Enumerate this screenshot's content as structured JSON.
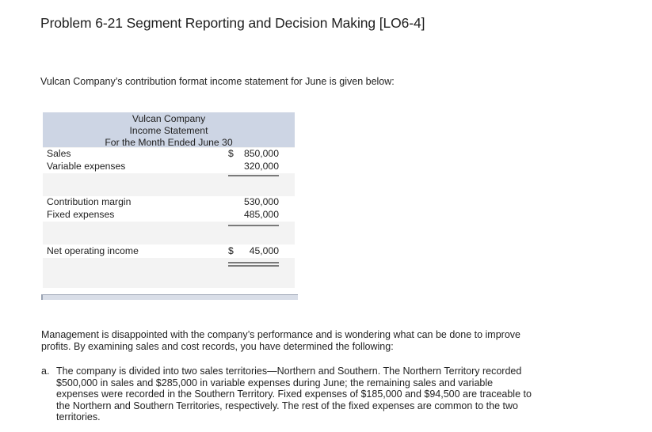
{
  "title": "Problem 6-21 Segment Reporting and Decision Making [LO6-4]",
  "intro": "Vulcan Company’s contribution format income statement for June is given below:",
  "statement": {
    "company": "Vulcan Company",
    "name": "Income Statement",
    "period": "For the Month Ended June 30",
    "rows": {
      "sales": {
        "label": "Sales",
        "dollar": "$",
        "value": "850,000"
      },
      "variable": {
        "label": "Variable expenses",
        "value": "320,000"
      },
      "cm": {
        "label": "Contribution margin",
        "value": "530,000"
      },
      "fixed": {
        "label": "Fixed expenses",
        "value": "485,000"
      },
      "noi": {
        "label": "Net operating income",
        "dollar": "$",
        "value": "45,000"
      }
    }
  },
  "paragraph": "Management is disappointed with the company’s performance and is wondering what can be done to improve profits. By examining sales and cost records, you have determined the following:",
  "item_a": {
    "marker": "a.",
    "text": "The company is divided into two sales territories—Northern and Southern. The Northern Territory recorded $500,000 in sales and $285,000 in variable expenses during June; the remaining sales and variable expenses were recorded in the Southern Territory. Fixed expenses of $185,000 and $94,500 are traceable to the Northern and Southern Territories, respectively. The rest of the fixed expenses are common to the two territories."
  }
}
